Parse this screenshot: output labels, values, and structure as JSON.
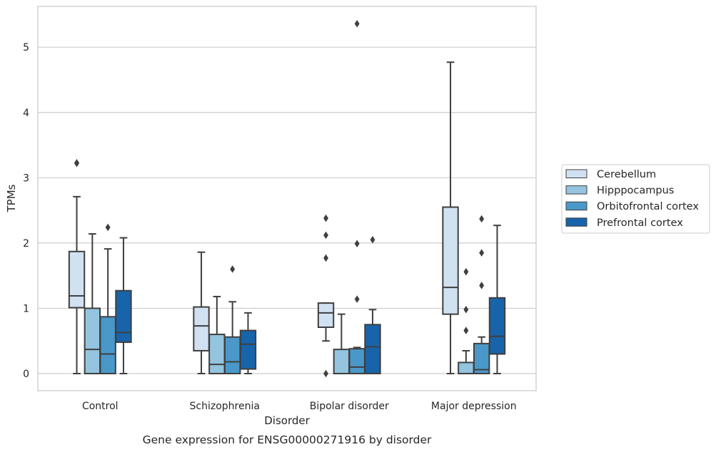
{
  "chart_data": {
    "type": "box",
    "title": "",
    "caption": "Gene expression for ENSG00000271916 by disorder",
    "xlabel": "Disorder",
    "ylabel": "TPMs",
    "ylim": [
      -0.25,
      5.63
    ],
    "yticks": [
      0,
      1,
      2,
      3,
      4,
      5
    ],
    "grid": "horizontal",
    "legend_position": "right",
    "categories": [
      "Control",
      "Schizophrenia",
      "Bipolar disorder",
      "Major depression"
    ],
    "series": [
      {
        "name": "Cerebellum",
        "color": "#d0e1f2",
        "boxes": [
          {
            "whislo": 0.0,
            "q1": 1.01,
            "med": 1.19,
            "q3": 1.87,
            "whishi": 2.71,
            "fliers": [
              3.23,
              3.22
            ]
          },
          {
            "whislo": 0.0,
            "q1": 0.35,
            "med": 0.73,
            "q3": 1.02,
            "whishi": 1.86,
            "fliers": []
          },
          {
            "whislo": 0.5,
            "q1": 0.71,
            "med": 0.93,
            "q3": 1.08,
            "whishi": 1.08,
            "fliers": [
              2.38,
              2.12,
              1.77,
              0.0
            ]
          },
          {
            "whislo": 0.0,
            "q1": 0.91,
            "med": 1.32,
            "q3": 2.55,
            "whishi": 4.77,
            "fliers": []
          }
        ]
      },
      {
        "name": "Hipppocampus",
        "color": "#94c4df",
        "boxes": [
          {
            "whislo": 0.0,
            "q1": 0.0,
            "med": 0.37,
            "q3": 1.0,
            "whishi": 2.14,
            "fliers": []
          },
          {
            "whislo": 0.0,
            "q1": 0.0,
            "med": 0.14,
            "q3": 0.6,
            "whishi": 1.18,
            "fliers": []
          },
          {
            "whislo": 0.0,
            "q1": 0.0,
            "med": 0.0,
            "q3": 0.37,
            "whishi": 0.91,
            "fliers": []
          },
          {
            "whislo": 0.0,
            "q1": 0.0,
            "med": 0.0,
            "q3": 0.17,
            "whishi": 0.35,
            "fliers": [
              1.56,
              0.98,
              0.66
            ]
          }
        ]
      },
      {
        "name": "Orbitofrontal cortex",
        "color": "#4a98c9",
        "boxes": [
          {
            "whislo": 0.0,
            "q1": 0.0,
            "med": 0.3,
            "q3": 0.87,
            "whishi": 1.91,
            "fliers": [
              2.24
            ]
          },
          {
            "whislo": 0.0,
            "q1": 0.0,
            "med": 0.18,
            "q3": 0.56,
            "whishi": 1.1,
            "fliers": [
              1.6
            ]
          },
          {
            "whislo": 0.0,
            "q1": 0.0,
            "med": 0.1,
            "q3": 0.38,
            "whishi": 0.4,
            "fliers": [
              5.36,
              1.99,
              1.14
            ]
          },
          {
            "whislo": 0.0,
            "q1": 0.0,
            "med": 0.06,
            "q3": 0.46,
            "whishi": 0.56,
            "fliers": [
              2.37,
              1.85,
              1.35
            ]
          }
        ]
      },
      {
        "name": "Prefrontal cortex",
        "color": "#1764ab",
        "boxes": [
          {
            "whislo": 0.0,
            "q1": 0.48,
            "med": 0.63,
            "q3": 1.27,
            "whishi": 2.08,
            "fliers": []
          },
          {
            "whislo": 0.0,
            "q1": 0.07,
            "med": 0.45,
            "q3": 0.66,
            "whishi": 0.93,
            "fliers": []
          },
          {
            "whislo": 0.0,
            "q1": 0.0,
            "med": 0.41,
            "q3": 0.75,
            "whishi": 0.98,
            "fliers": [
              2.05
            ]
          },
          {
            "whislo": 0.0,
            "q1": 0.3,
            "med": 0.57,
            "q3": 1.16,
            "whishi": 2.27,
            "fliers": []
          }
        ]
      }
    ]
  }
}
